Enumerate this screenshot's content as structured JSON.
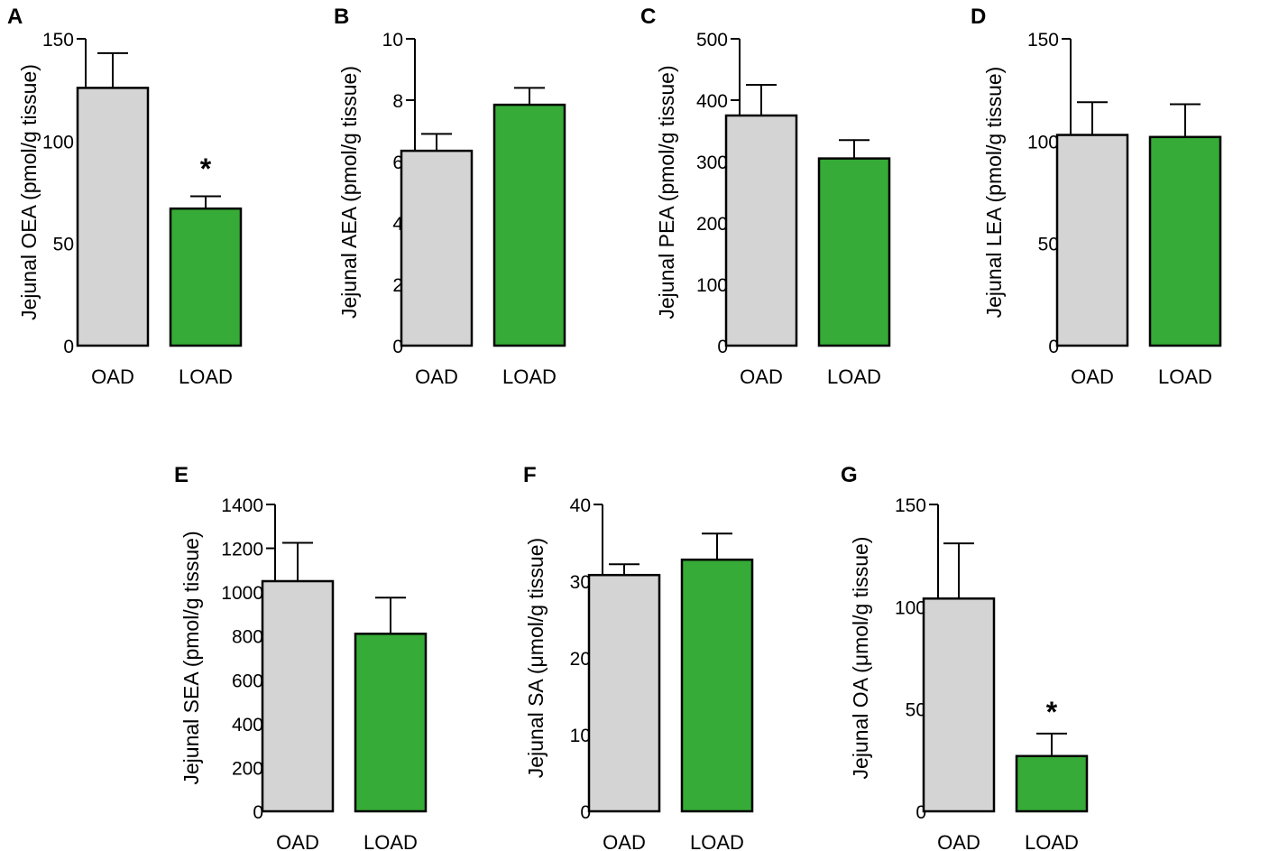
{
  "figure": {
    "categories": [
      "OAD",
      "LOAD"
    ],
    "colors": {
      "OAD": "#d4d4d4",
      "LOAD": "#36ab37",
      "axis": "#000000"
    },
    "significance_marker": "*"
  },
  "chart_data": [
    {
      "panel": "A",
      "type": "bar",
      "ylabel": "Jejunal  OEA (pmol/g tissue)",
      "ylim": [
        0,
        150
      ],
      "yticks": [
        0,
        50,
        100,
        150
      ],
      "categories": [
        "OAD",
        "LOAD"
      ],
      "values": [
        126,
        67
      ],
      "errors": [
        17,
        6
      ],
      "significant": [
        false,
        true
      ]
    },
    {
      "panel": "B",
      "type": "bar",
      "ylabel": "Jejunal  AEA (pmol/g tissue)",
      "ylim": [
        0,
        10
      ],
      "yticks": [
        0,
        2,
        4,
        6,
        8,
        10
      ],
      "categories": [
        "OAD",
        "LOAD"
      ],
      "values": [
        6.35,
        7.85
      ],
      "errors": [
        0.55,
        0.55
      ],
      "significant": [
        false,
        false
      ]
    },
    {
      "panel": "C",
      "type": "bar",
      "ylabel": "Jejunal  PEA (pmol/g tissue)",
      "ylim": [
        0,
        500
      ],
      "yticks": [
        0,
        100,
        200,
        300,
        400,
        500
      ],
      "categories": [
        "OAD",
        "LOAD"
      ],
      "values": [
        375,
        305
      ],
      "errors": [
        50,
        30
      ],
      "significant": [
        false,
        false
      ]
    },
    {
      "panel": "D",
      "type": "bar",
      "ylabel": "Jejunal  LEA (pmol/g tissue)",
      "ylim": [
        0,
        150
      ],
      "yticks": [
        0,
        50,
        100,
        150
      ],
      "categories": [
        "OAD",
        "LOAD"
      ],
      "values": [
        103,
        102
      ],
      "errors": [
        16,
        16
      ],
      "significant": [
        false,
        false
      ]
    },
    {
      "panel": "E",
      "type": "bar",
      "ylabel": "Jejunal  SEA (pmol/g tissue)",
      "ylim": [
        0,
        1400
      ],
      "yticks": [
        0,
        200,
        400,
        600,
        800,
        1000,
        1200,
        1400
      ],
      "categories": [
        "OAD",
        "LOAD"
      ],
      "values": [
        1050,
        810
      ],
      "errors": [
        175,
        165
      ],
      "significant": [
        false,
        false
      ]
    },
    {
      "panel": "F",
      "type": "bar",
      "ylabel": "Jejunal  SA (μmol/g tissue)",
      "ylim": [
        0,
        40
      ],
      "yticks": [
        0,
        10,
        20,
        30,
        40
      ],
      "categories": [
        "OAD",
        "LOAD"
      ],
      "values": [
        30.8,
        32.8
      ],
      "errors": [
        1.4,
        3.4
      ],
      "significant": [
        false,
        false
      ]
    },
    {
      "panel": "G",
      "type": "bar",
      "ylabel": "Jejunal OA (μmol/g tissue)",
      "ylim": [
        0,
        150
      ],
      "yticks": [
        0,
        50,
        100,
        150
      ],
      "categories": [
        "OAD",
        "LOAD"
      ],
      "values": [
        104,
        27
      ],
      "errors": [
        27,
        11
      ],
      "significant": [
        false,
        true
      ]
    }
  ]
}
